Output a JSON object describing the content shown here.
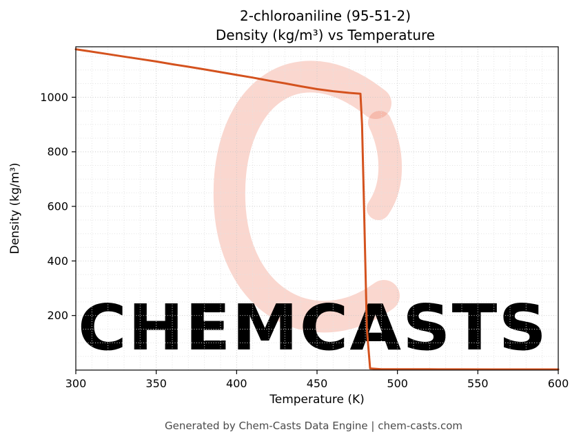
{
  "chart_data": {
    "type": "line",
    "title": "2-chloroaniline (95-51-2)",
    "subtitle": "Density (kg/m³) vs Temperature",
    "xlabel": "Temperature (K)",
    "ylabel": "Density (kg/m³)",
    "xlim": [
      300,
      600
    ],
    "ylim": [
      0,
      1185
    ],
    "xticks": [
      300,
      350,
      400,
      450,
      500,
      550,
      600
    ],
    "yticks": [
      200,
      400,
      600,
      800,
      1000
    ],
    "grid": "on",
    "grid_minor_x": 10,
    "grid_minor_y": 50,
    "minor_grid_color": "#e2e2e2",
    "major_grid_color": "#c9c9c9",
    "line_color": "#d4521e",
    "line_width": 3,
    "legend": "none",
    "series": [
      {
        "name": "Density",
        "points": [
          [
            300,
            1176
          ],
          [
            310,
            1167
          ],
          [
            320,
            1158
          ],
          [
            330,
            1149
          ],
          [
            340,
            1140
          ],
          [
            350,
            1131
          ],
          [
            360,
            1121
          ],
          [
            370,
            1112
          ],
          [
            380,
            1102
          ],
          [
            390,
            1092
          ],
          [
            400,
            1082
          ],
          [
            410,
            1072
          ],
          [
            420,
            1061
          ],
          [
            430,
            1051
          ],
          [
            440,
            1040
          ],
          [
            450,
            1030
          ],
          [
            460,
            1022
          ],
          [
            470,
            1016
          ],
          [
            477,
            1013
          ],
          [
            478,
            900
          ],
          [
            479,
            650
          ],
          [
            480,
            400
          ],
          [
            481,
            150
          ],
          [
            483,
            6
          ],
          [
            490,
            3.4
          ],
          [
            500,
            3.2
          ],
          [
            520,
            3.0
          ],
          [
            540,
            2.8
          ],
          [
            560,
            2.6
          ],
          [
            580,
            2.5
          ],
          [
            600,
            2.4
          ]
        ]
      }
    ]
  },
  "watermark": {
    "text": "CHEMCASTS",
    "text_color": "rgba(238,118,92,0.42)",
    "logo_color": "rgba(238,122,96,0.30)"
  },
  "footer": {
    "text": "Generated by Chem-Casts Data Engine | chem-casts.com"
  }
}
